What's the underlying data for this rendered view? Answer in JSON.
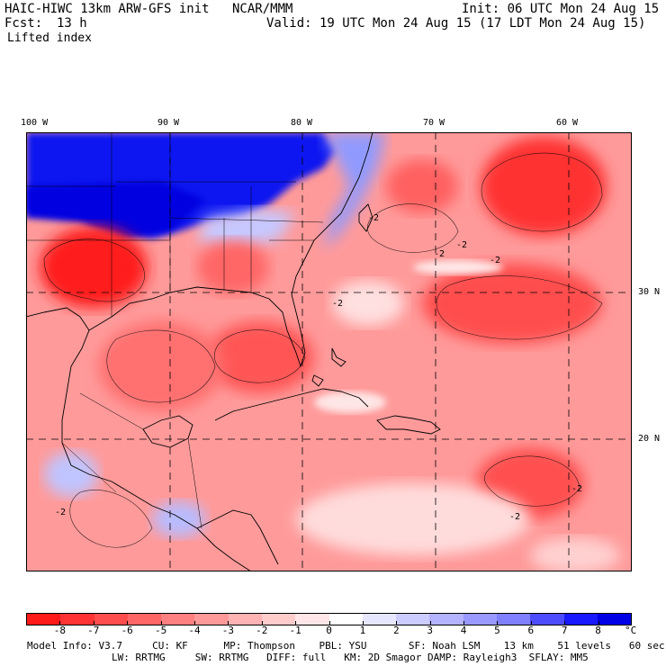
{
  "header": {
    "model": "HAIC-HIWC 13km ARW-GFS init",
    "org": "NCAR/MMM",
    "init": "Init: 06 UTC Mon 24 Aug 15",
    "fcst_label": "Fcst:",
    "fcst_value": "13 h",
    "valid": "Valid: 19 UTC Mon 24 Aug 15 (17 LDT Mon 24 Aug 15)",
    "field": "Lifted index"
  },
  "map": {
    "lon_labels": [
      "100 W",
      "90 W",
      "80 W",
      "70 W",
      "60 W"
    ],
    "lat_labels": [
      "30 N",
      "20 N"
    ],
    "contour_labels": [
      "-2",
      "-2",
      "-2",
      "-2",
      "-2",
      "-2",
      "-2",
      "-2"
    ]
  },
  "colorbar": {
    "ticks": [
      "-8",
      "-7",
      "-6",
      "-5",
      "-4",
      "-3",
      "-2",
      "-1",
      "0",
      "1",
      "2",
      "3",
      "4",
      "5",
      "6",
      "7",
      "8"
    ],
    "unit": "°C",
    "colors": [
      "#ff1a1a",
      "#ff3333",
      "#ff4d4d",
      "#ff6666",
      "#ff8080",
      "#ff9999",
      "#ffb3b3",
      "#ffcccc",
      "#ffe6e6",
      "#ffffff",
      "#e6e6ff",
      "#ccccff",
      "#b3b3ff",
      "#9999ff",
      "#8080ff",
      "#4d4dff",
      "#1a1aff",
      "#0000e6"
    ]
  },
  "model_info": {
    "line1": "Model Info: V3.7     CU: KF      MP: Thompson    PBL: YSU       SF: Noah LSM    13 km    51 levels   60 sec",
    "line2": "LW: RRTMG     SW: RRTMG   DIFF: full   KM: 2D Smagor DAMP: Rayleigh3  SFLAY: MM5"
  }
}
